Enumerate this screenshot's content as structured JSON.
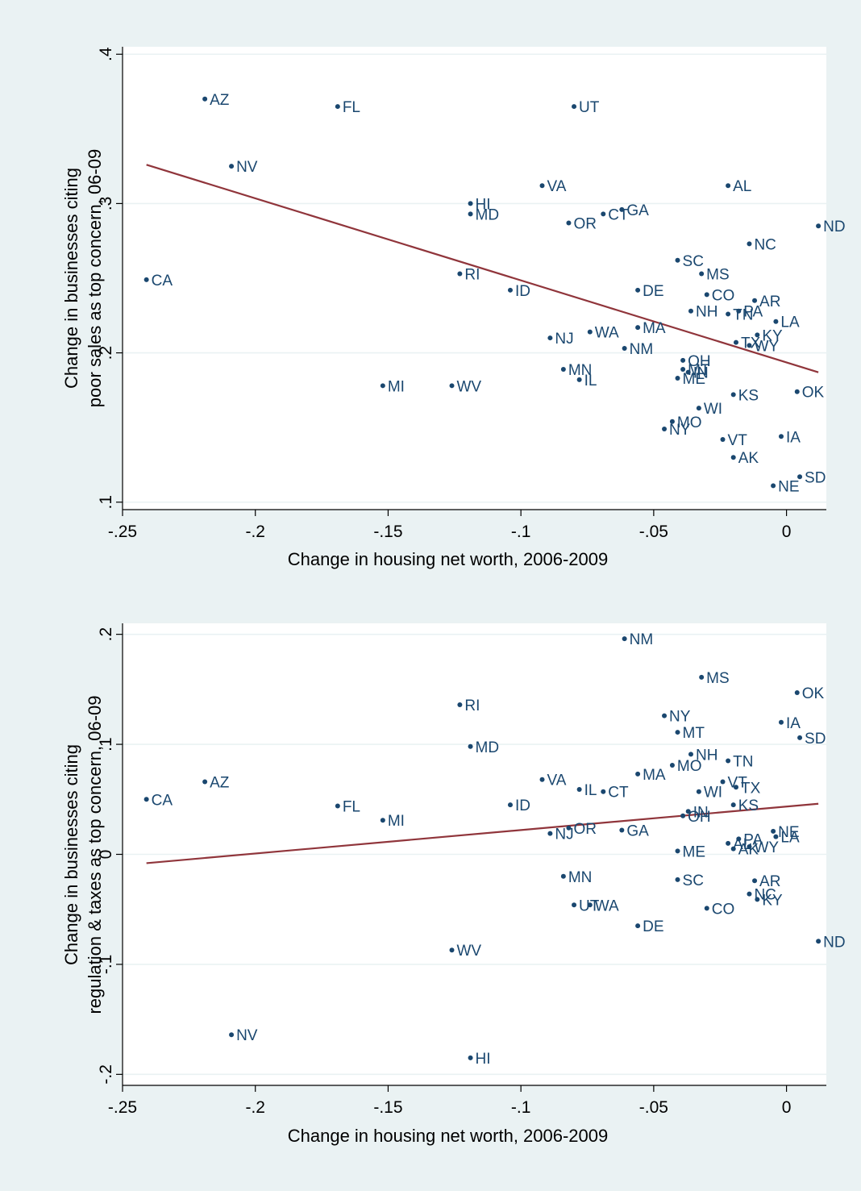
{
  "colors": {
    "background": "#eaf2f3",
    "plot_region": "#ffffff",
    "marker": "#1a476f",
    "fit_line": "#90353b",
    "gridline": "#eaf2f3"
  },
  "chart_data": [
    {
      "type": "scatter",
      "title": "",
      "xlabel": "Change in housing net worth, 2006-2009",
      "ylabel": [
        "Change in businesses citing",
        "poor sales as top concern, 06-09"
      ],
      "xlim": [
        -0.25,
        0.015
      ],
      "ylim": [
        0.095,
        0.405
      ],
      "xticks": [
        -0.25,
        -0.2,
        -0.15,
        -0.1,
        -0.05,
        0
      ],
      "xtick_labels": [
        "-.25",
        "-.2",
        "-.15",
        "-.1",
        "-.05",
        "0"
      ],
      "yticks": [
        0.1,
        0.2,
        0.3,
        0.4
      ],
      "ytick_labels": [
        ".1",
        ".2",
        ".3",
        ".4"
      ],
      "grid": true,
      "fit_line": {
        "x": [
          -0.241,
          0.012
        ],
        "y": [
          0.326,
          0.187
        ]
      },
      "points": [
        {
          "label": "AZ",
          "x": -0.219,
          "y": 0.37
        },
        {
          "label": "FL",
          "x": -0.169,
          "y": 0.365
        },
        {
          "label": "UT",
          "x": -0.08,
          "y": 0.365
        },
        {
          "label": "NV",
          "x": -0.209,
          "y": 0.325
        },
        {
          "label": "VA",
          "x": -0.092,
          "y": 0.312
        },
        {
          "label": "AL",
          "x": -0.022,
          "y": 0.312
        },
        {
          "label": "HI",
          "x": -0.119,
          "y": 0.3
        },
        {
          "label": "MD",
          "x": -0.119,
          "y": 0.293
        },
        {
          "label": "GA",
          "x": -0.062,
          "y": 0.296
        },
        {
          "label": "CT",
          "x": -0.069,
          "y": 0.293
        },
        {
          "label": "OR",
          "x": -0.082,
          "y": 0.287
        },
        {
          "label": "ND",
          "x": 0.012,
          "y": 0.285
        },
        {
          "label": "NC",
          "x": -0.014,
          "y": 0.273
        },
        {
          "label": "SC",
          "x": -0.041,
          "y": 0.262
        },
        {
          "label": "MS",
          "x": -0.032,
          "y": 0.253
        },
        {
          "label": "RI",
          "x": -0.123,
          "y": 0.253
        },
        {
          "label": "CA",
          "x": -0.241,
          "y": 0.249
        },
        {
          "label": "ID",
          "x": -0.104,
          "y": 0.242
        },
        {
          "label": "DE",
          "x": -0.056,
          "y": 0.242
        },
        {
          "label": "CO",
          "x": -0.03,
          "y": 0.239
        },
        {
          "label": "AR",
          "x": -0.012,
          "y": 0.235
        },
        {
          "label": "NH",
          "x": -0.036,
          "y": 0.228
        },
        {
          "label": "TN",
          "x": -0.022,
          "y": 0.226
        },
        {
          "label": "PA",
          "x": -0.018,
          "y": 0.228
        },
        {
          "label": "LA",
          "x": -0.004,
          "y": 0.221
        },
        {
          "label": "MA",
          "x": -0.056,
          "y": 0.217
        },
        {
          "label": "WA",
          "x": -0.074,
          "y": 0.214
        },
        {
          "label": "KY",
          "x": -0.011,
          "y": 0.212
        },
        {
          "label": "NJ",
          "x": -0.089,
          "y": 0.21
        },
        {
          "label": "TX",
          "x": -0.019,
          "y": 0.207
        },
        {
          "label": "WY",
          "x": -0.014,
          "y": 0.205
        },
        {
          "label": "NM",
          "x": -0.061,
          "y": 0.203
        },
        {
          "label": "OH",
          "x": -0.039,
          "y": 0.195
        },
        {
          "label": "MN",
          "x": -0.084,
          "y": 0.189
        },
        {
          "label": "MT",
          "x": -0.039,
          "y": 0.189
        },
        {
          "label": "IN",
          "x": -0.037,
          "y": 0.187
        },
        {
          "label": "ME",
          "x": -0.041,
          "y": 0.183
        },
        {
          "label": "IL",
          "x": -0.078,
          "y": 0.182
        },
        {
          "label": "MI",
          "x": -0.152,
          "y": 0.178
        },
        {
          "label": "WV",
          "x": -0.126,
          "y": 0.178
        },
        {
          "label": "OK",
          "x": 0.004,
          "y": 0.174
        },
        {
          "label": "KS",
          "x": -0.02,
          "y": 0.172
        },
        {
          "label": "WI",
          "x": -0.033,
          "y": 0.163
        },
        {
          "label": "MO",
          "x": -0.043,
          "y": 0.154
        },
        {
          "label": "NY",
          "x": -0.046,
          "y": 0.149
        },
        {
          "label": "IA",
          "x": -0.002,
          "y": 0.144
        },
        {
          "label": "VT",
          "x": -0.024,
          "y": 0.142
        },
        {
          "label": "AK",
          "x": -0.02,
          "y": 0.13
        },
        {
          "label": "SD",
          "x": 0.005,
          "y": 0.117
        },
        {
          "label": "NE",
          "x": -0.005,
          "y": 0.111
        }
      ]
    },
    {
      "type": "scatter",
      "title": "",
      "xlabel": "Change in housing net worth, 2006-2009",
      "ylabel": [
        "Change in businesses citing",
        "regulation & taxes as top concern, 06-09"
      ],
      "xlim": [
        -0.25,
        0.015
      ],
      "ylim": [
        -0.21,
        0.21
      ],
      "xticks": [
        -0.25,
        -0.2,
        -0.15,
        -0.1,
        -0.05,
        0
      ],
      "xtick_labels": [
        "-.25",
        "-.2",
        "-.15",
        "-.1",
        "-.05",
        "0"
      ],
      "yticks": [
        -0.2,
        -0.1,
        0,
        0.1,
        0.2
      ],
      "ytick_labels": [
        "-.2",
        "-.1",
        "0",
        ".1",
        ".2"
      ],
      "grid": true,
      "fit_line": {
        "x": [
          -0.241,
          0.012
        ],
        "y": [
          -0.008,
          0.046
        ]
      },
      "points": [
        {
          "label": "NM",
          "x": -0.061,
          "y": 0.196
        },
        {
          "label": "MS",
          "x": -0.032,
          "y": 0.161
        },
        {
          "label": "OK",
          "x": 0.004,
          "y": 0.147
        },
        {
          "label": "RI",
          "x": -0.123,
          "y": 0.136
        },
        {
          "label": "NY",
          "x": -0.046,
          "y": 0.126
        },
        {
          "label": "IA",
          "x": -0.002,
          "y": 0.12
        },
        {
          "label": "MT",
          "x": -0.041,
          "y": 0.111
        },
        {
          "label": "SD",
          "x": 0.005,
          "y": 0.106
        },
        {
          "label": "MD",
          "x": -0.119,
          "y": 0.098
        },
        {
          "label": "NH",
          "x": -0.036,
          "y": 0.091
        },
        {
          "label": "TN",
          "x": -0.022,
          "y": 0.085
        },
        {
          "label": "MO",
          "x": -0.043,
          "y": 0.081
        },
        {
          "label": "MA",
          "x": -0.056,
          "y": 0.073
        },
        {
          "label": "VA",
          "x": -0.092,
          "y": 0.068
        },
        {
          "label": "AZ",
          "x": -0.219,
          "y": 0.066
        },
        {
          "label": "VT",
          "x": -0.024,
          "y": 0.066
        },
        {
          "label": "TX",
          "x": -0.019,
          "y": 0.061
        },
        {
          "label": "IL",
          "x": -0.078,
          "y": 0.059
        },
        {
          "label": "WI",
          "x": -0.033,
          "y": 0.057
        },
        {
          "label": "CT",
          "x": -0.069,
          "y": 0.057
        },
        {
          "label": "CA",
          "x": -0.241,
          "y": 0.05
        },
        {
          "label": "KS",
          "x": -0.02,
          "y": 0.045
        },
        {
          "label": "ID",
          "x": -0.104,
          "y": 0.045
        },
        {
          "label": "FL",
          "x": -0.169,
          "y": 0.044
        },
        {
          "label": "IN",
          "x": -0.037,
          "y": 0.039
        },
        {
          "label": "OH",
          "x": -0.039,
          "y": 0.035
        },
        {
          "label": "MI",
          "x": -0.152,
          "y": 0.031
        },
        {
          "label": "OR",
          "x": -0.082,
          "y": 0.024
        },
        {
          "label": "GA",
          "x": -0.062,
          "y": 0.022
        },
        {
          "label": "NE",
          "x": -0.005,
          "y": 0.021
        },
        {
          "label": "NJ",
          "x": -0.089,
          "y": 0.019
        },
        {
          "label": "LA",
          "x": -0.004,
          "y": 0.016
        },
        {
          "label": "PA",
          "x": -0.018,
          "y": 0.014
        },
        {
          "label": "AL",
          "x": -0.022,
          "y": 0.01
        },
        {
          "label": "WY",
          "x": -0.014,
          "y": 0.007
        },
        {
          "label": "AK",
          "x": -0.02,
          "y": 0.005
        },
        {
          "label": "ME",
          "x": -0.041,
          "y": 0.003
        },
        {
          "label": "MN",
          "x": -0.084,
          "y": -0.02
        },
        {
          "label": "SC",
          "x": -0.041,
          "y": -0.023
        },
        {
          "label": "AR",
          "x": -0.012,
          "y": -0.024
        },
        {
          "label": "NC",
          "x": -0.014,
          "y": -0.036
        },
        {
          "label": "KY",
          "x": -0.011,
          "y": -0.041
        },
        {
          "label": "UT",
          "x": -0.08,
          "y": -0.046
        },
        {
          "label": "WA",
          "x": -0.074,
          "y": -0.046
        },
        {
          "label": "CO",
          "x": -0.03,
          "y": -0.049
        },
        {
          "label": "DE",
          "x": -0.056,
          "y": -0.065
        },
        {
          "label": "ND",
          "x": 0.012,
          "y": -0.079
        },
        {
          "label": "WV",
          "x": -0.126,
          "y": -0.087
        },
        {
          "label": "NV",
          "x": -0.209,
          "y": -0.164
        },
        {
          "label": "HI",
          "x": -0.119,
          "y": -0.185
        }
      ]
    }
  ]
}
